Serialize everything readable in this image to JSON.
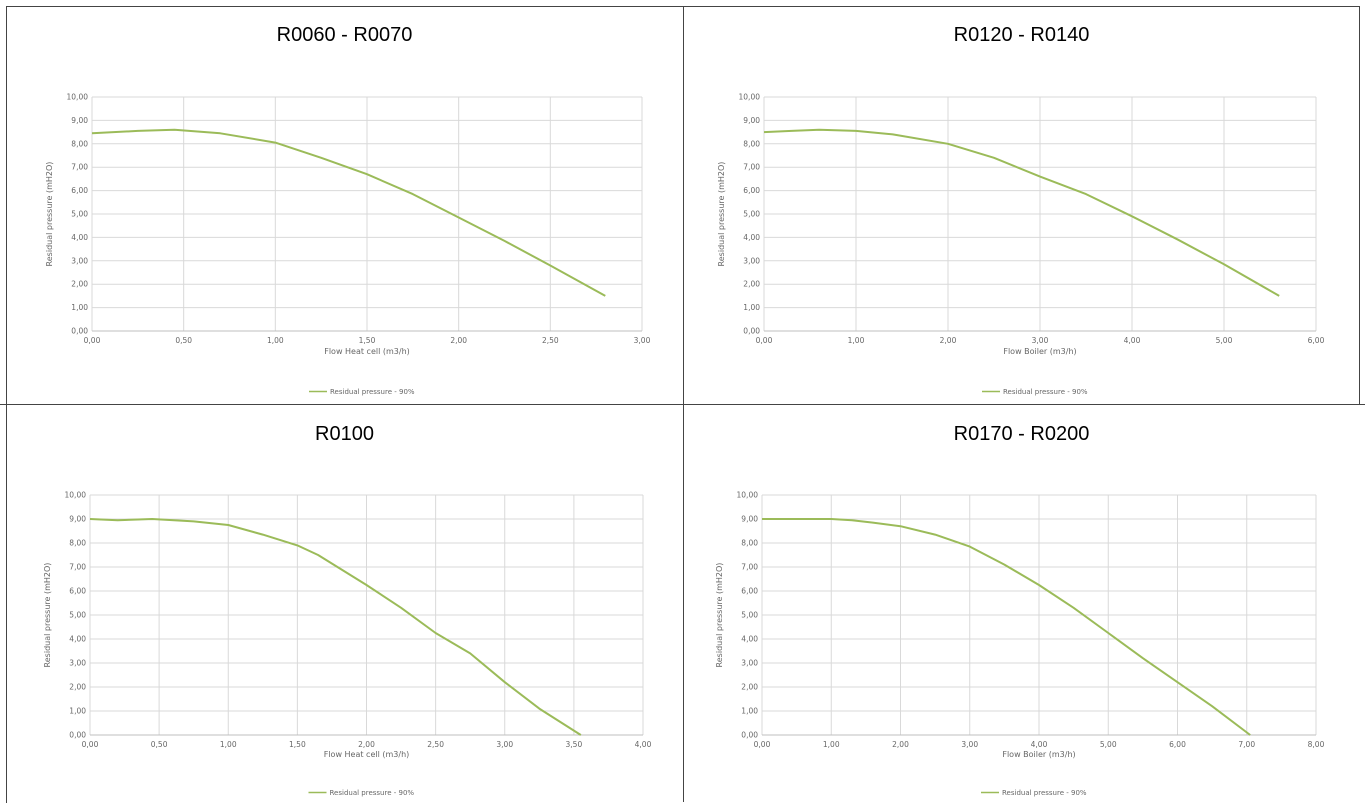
{
  "charts": [
    {
      "panel_title": "R0060 - R0070",
      "chart_data": {
        "type": "line",
        "xlabel": "Flow Heat cell (m3/h)",
        "ylabel": "Residual pressure (mH2O)",
        "xlim": [
          0,
          3
        ],
        "ylim": [
          0,
          10
        ],
        "x_ticks": [
          "0,00",
          "0,50",
          "1,00",
          "1,50",
          "2,00",
          "2,50",
          "3,00"
        ],
        "y_ticks": [
          "0,00",
          "1,00",
          "2,00",
          "3,00",
          "4,00",
          "5,00",
          "6,00",
          "7,00",
          "8,00",
          "9,00",
          "10,00"
        ],
        "grid": true,
        "legend_position": "bottom",
        "series": [
          {
            "name": "Residual pressure - 90%",
            "color": "#9bbb59",
            "x": [
              0,
              0.25,
              0.45,
              0.7,
              1.0,
              1.25,
              1.5,
              1.75,
              2.0,
              2.25,
              2.5,
              2.8
            ],
            "y": [
              8.45,
              8.55,
              8.6,
              8.45,
              8.05,
              7.4,
              6.7,
              5.85,
              4.85,
              3.85,
              2.8,
              1.5
            ]
          }
        ]
      }
    },
    {
      "panel_title": "R0120 - R0140",
      "chart_data": {
        "type": "line",
        "xlabel": "Flow Boiler (m3/h)",
        "ylabel": "Residual pressure (mH2O)",
        "xlim": [
          0,
          6
        ],
        "ylim": [
          0,
          10
        ],
        "x_ticks": [
          "0,00",
          "1,00",
          "2,00",
          "3,00",
          "4,00",
          "5,00",
          "6,00"
        ],
        "y_ticks": [
          "0,00",
          "1,00",
          "2,00",
          "3,00",
          "4,00",
          "5,00",
          "6,00",
          "7,00",
          "8,00",
          "9,00",
          "10,00"
        ],
        "grid": true,
        "legend_position": "bottom",
        "series": [
          {
            "name": "Residual pressure - 90%",
            "color": "#9bbb59",
            "x": [
              0,
              0.3,
              0.6,
              1.0,
              1.4,
              2.0,
              2.5,
              3.0,
              3.5,
              4.0,
              4.5,
              5.0,
              5.6
            ],
            "y": [
              8.5,
              8.55,
              8.6,
              8.55,
              8.4,
              8.0,
              7.4,
              6.6,
              5.85,
              4.9,
              3.9,
              2.85,
              1.5
            ]
          }
        ]
      }
    },
    {
      "panel_title": "R0100",
      "chart_data": {
        "type": "line",
        "xlabel": "Flow Heat cell (m3/h)",
        "ylabel": "Residual pressure (mH2O)",
        "xlim": [
          0,
          4
        ],
        "ylim": [
          0,
          10
        ],
        "x_ticks": [
          "0,00",
          "0,50",
          "1,00",
          "1,50",
          "2,00",
          "2,50",
          "3,00",
          "3,50",
          "4,00"
        ],
        "y_ticks": [
          "0,00",
          "1,00",
          "2,00",
          "3,00",
          "4,00",
          "5,00",
          "6,00",
          "7,00",
          "8,00",
          "9,00",
          "10,00"
        ],
        "grid": true,
        "legend_position": "bottom",
        "series": [
          {
            "name": "Residual pressure - 90%",
            "color": "#9bbb59",
            "x": [
              0,
              0.2,
              0.45,
              0.75,
              1.0,
              1.25,
              1.5,
              1.65,
              2.0,
              2.25,
              2.5,
              2.75,
              3.0,
              3.25,
              3.55
            ],
            "y": [
              9.0,
              8.95,
              9.0,
              8.9,
              8.75,
              8.35,
              7.9,
              7.5,
              6.25,
              5.3,
              4.25,
              3.4,
              2.2,
              1.1,
              0.0
            ]
          }
        ]
      }
    },
    {
      "panel_title": "R0170 - R0200",
      "chart_data": {
        "type": "line",
        "xlabel": "Flow Boiler (m3/h)",
        "ylabel": "Residual pressure (mH2O)",
        "xlim": [
          0,
          8
        ],
        "ylim": [
          0,
          10
        ],
        "x_ticks": [
          "0,00",
          "1,00",
          "2,00",
          "3,00",
          "4,00",
          "5,00",
          "6,00",
          "7,00",
          "8,00"
        ],
        "y_ticks": [
          "0,00",
          "1,00",
          "2,00",
          "3,00",
          "4,00",
          "5,00",
          "6,00",
          "7,00",
          "8,00",
          "9,00",
          "10,00"
        ],
        "grid": true,
        "legend_position": "bottom",
        "series": [
          {
            "name": "Residual pressure - 90%",
            "color": "#9bbb59",
            "x": [
              0,
              0.5,
              1.0,
              1.3,
              1.6,
              2.0,
              2.5,
              3.0,
              3.5,
              4.0,
              4.5,
              5.0,
              5.5,
              6.0,
              6.5,
              7.05
            ],
            "y": [
              9.0,
              9.0,
              9.0,
              8.95,
              8.85,
              8.7,
              8.35,
              7.85,
              7.1,
              6.25,
              5.3,
              4.25,
              3.2,
              2.2,
              1.2,
              0.0
            ]
          }
        ]
      }
    }
  ]
}
